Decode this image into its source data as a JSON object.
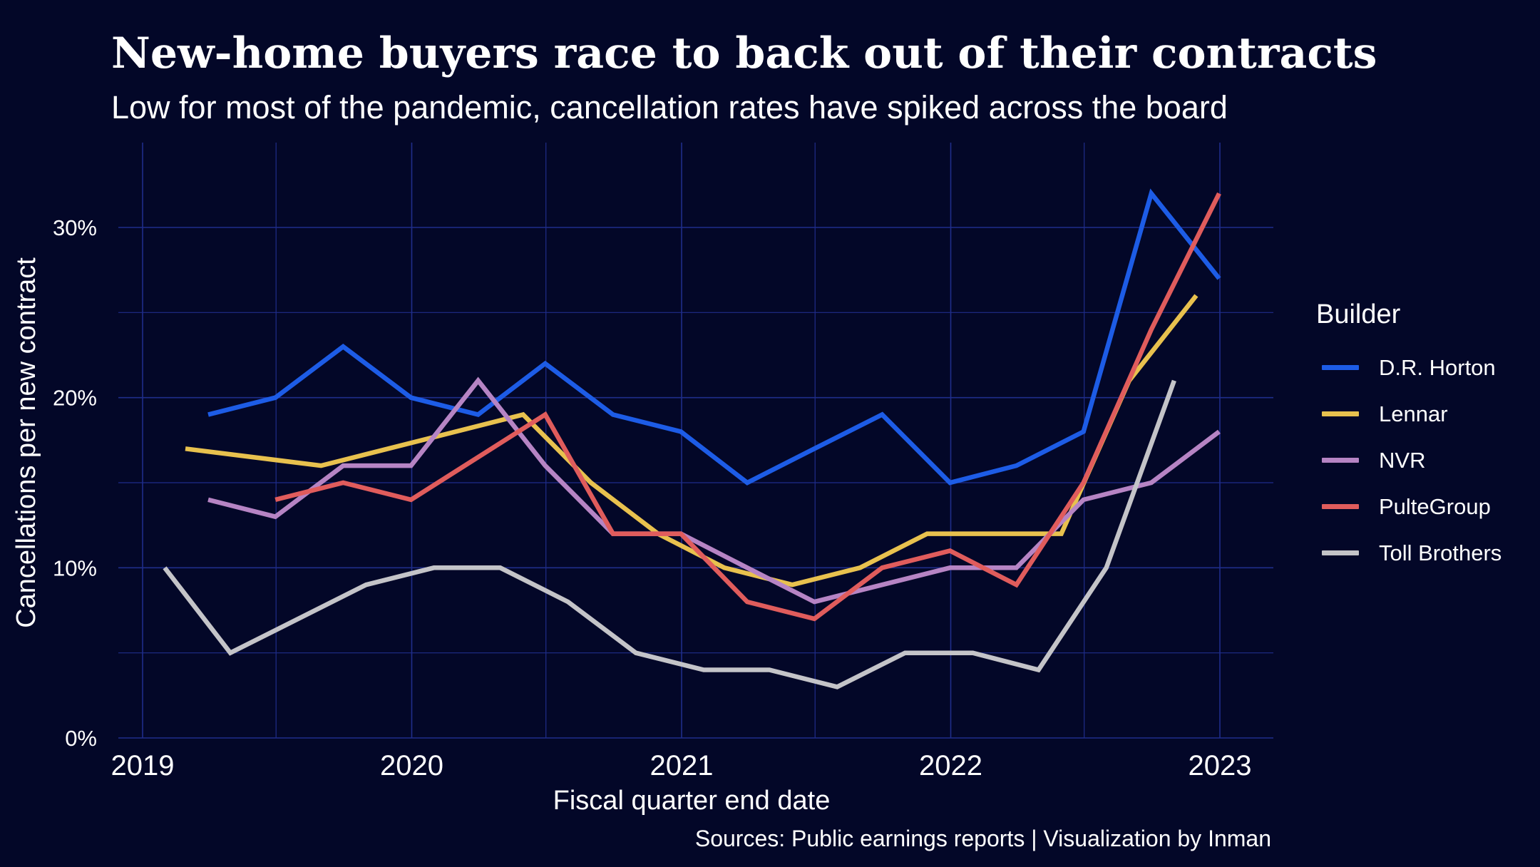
{
  "chart_data": {
    "type": "line",
    "title": "New-home buyers race to back out of their contracts",
    "subtitle": "Low for most of the pandemic, cancellation rates have spiked across the board",
    "xlabel": "Fiscal quarter end date",
    "ylabel": "Cancellations per new contract",
    "caption": "Sources: Public earnings reports | Visualization by Inman",
    "x_ticks": [
      "2019",
      "2020",
      "2021",
      "2022",
      "2023"
    ],
    "y_ticks": [
      "0%",
      "10%",
      "20%",
      "30%"
    ],
    "xlim": [
      "2019-01-01",
      "2023-02-15"
    ],
    "ylim": [
      0,
      0.35
    ],
    "grid": true,
    "legend_title": "Builder",
    "legend_position": "right",
    "series": [
      {
        "name": "D.R. Horton",
        "color": "#1d5ce6",
        "points": [
          [
            "2019-03-31",
            0.19
          ],
          [
            "2019-06-30",
            0.2
          ],
          [
            "2019-09-30",
            0.23
          ],
          [
            "2019-12-31",
            0.2
          ],
          [
            "2020-03-31",
            0.19
          ],
          [
            "2020-06-30",
            0.22
          ],
          [
            "2020-09-30",
            0.19
          ],
          [
            "2020-12-31",
            0.18
          ],
          [
            "2021-03-31",
            0.15
          ],
          [
            "2021-06-30",
            0.17
          ],
          [
            "2021-09-30",
            0.19
          ],
          [
            "2021-12-31",
            0.15
          ],
          [
            "2022-03-31",
            0.16
          ],
          [
            "2022-06-30",
            0.18
          ],
          [
            "2022-09-30",
            0.32
          ],
          [
            "2022-12-31",
            0.27
          ]
        ]
      },
      {
        "name": "Lennar",
        "color": "#e8c14e",
        "points": [
          [
            "2019-02-28",
            0.17
          ],
          [
            "2019-08-31",
            0.16
          ],
          [
            "2020-05-31",
            0.19
          ],
          [
            "2020-08-31",
            0.15
          ],
          [
            "2020-11-30",
            0.12
          ],
          [
            "2021-02-28",
            0.1
          ],
          [
            "2021-05-31",
            0.09
          ],
          [
            "2021-08-31",
            0.1
          ],
          [
            "2021-11-30",
            0.12
          ],
          [
            "2022-05-31",
            0.12
          ],
          [
            "2022-08-31",
            0.21
          ],
          [
            "2022-11-30",
            0.26
          ]
        ]
      },
      {
        "name": "NVR",
        "color": "#b684c4",
        "points": [
          [
            "2019-03-31",
            0.14
          ],
          [
            "2019-06-30",
            0.13
          ],
          [
            "2019-09-30",
            0.16
          ],
          [
            "2019-12-31",
            0.16
          ],
          [
            "2020-03-31",
            0.21
          ],
          [
            "2020-06-30",
            0.16
          ],
          [
            "2020-09-30",
            0.12
          ],
          [
            "2020-12-31",
            0.12
          ],
          [
            "2021-03-31",
            0.1
          ],
          [
            "2021-06-30",
            0.08
          ],
          [
            "2021-09-30",
            0.09
          ],
          [
            "2021-12-31",
            0.1
          ],
          [
            "2022-03-31",
            0.1
          ],
          [
            "2022-06-30",
            0.14
          ],
          [
            "2022-09-30",
            0.15
          ],
          [
            "2022-12-31",
            0.18
          ]
        ]
      },
      {
        "name": "PulteGroup",
        "color": "#e05c5c",
        "points": [
          [
            "2019-06-30",
            0.14
          ],
          [
            "2019-09-30",
            0.15
          ],
          [
            "2019-12-31",
            0.14
          ],
          [
            "2020-06-30",
            0.19
          ],
          [
            "2020-09-30",
            0.12
          ],
          [
            "2020-12-31",
            0.12
          ],
          [
            "2021-03-31",
            0.08
          ],
          [
            "2021-06-30",
            0.07
          ],
          [
            "2021-09-30",
            0.1
          ],
          [
            "2021-12-31",
            0.11
          ],
          [
            "2022-03-31",
            0.09
          ],
          [
            "2022-06-30",
            0.15
          ],
          [
            "2022-09-30",
            0.24
          ],
          [
            "2022-12-31",
            0.32
          ]
        ]
      },
      {
        "name": "Toll Brothers",
        "color": "#c4c4c8",
        "points": [
          [
            "2019-01-31",
            0.1
          ],
          [
            "2019-04-30",
            0.05
          ],
          [
            "2019-10-31",
            0.09
          ],
          [
            "2020-01-31",
            0.1
          ],
          [
            "2020-04-30",
            0.1
          ],
          [
            "2020-07-31",
            0.08
          ],
          [
            "2020-10-31",
            0.05
          ],
          [
            "2021-01-31",
            0.04
          ],
          [
            "2021-04-30",
            0.04
          ],
          [
            "2021-07-31",
            0.03
          ],
          [
            "2021-10-31",
            0.05
          ],
          [
            "2022-01-31",
            0.05
          ],
          [
            "2022-04-30",
            0.04
          ],
          [
            "2022-07-31",
            0.1
          ],
          [
            "2022-10-31",
            0.21
          ]
        ]
      }
    ]
  }
}
